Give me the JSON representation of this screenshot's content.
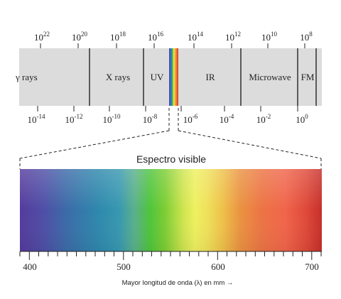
{
  "spectrum": {
    "freq_exponents": [
      "22",
      "20",
      "18",
      "16",
      "14",
      "12",
      "10",
      "8"
    ],
    "wavelength_exponents": [
      "-14",
      "-12",
      "-10",
      "-8",
      "-6",
      "-4",
      "-2",
      "0"
    ],
    "tick_base": "10",
    "bands": [
      "γ rays",
      "X rays",
      "UV",
      "IR",
      "Microwave",
      "FM"
    ],
    "band_color": "#dcdcdc"
  },
  "visible": {
    "title": "Espectro visible",
    "axis_ticks": [
      "400",
      "500",
      "600",
      "700"
    ],
    "axis_label": "Mayor longitud de onda (λ) en mm →"
  }
}
